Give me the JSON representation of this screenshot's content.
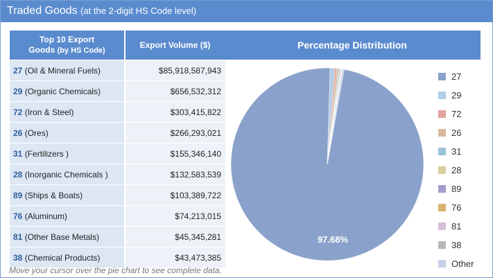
{
  "header": {
    "title": "Traded Goods",
    "subtitle": "(at the 2-digit HS Code level)"
  },
  "table": {
    "col1_line1": "Top 10 Export",
    "col1_line2": "Goods",
    "col1_note": "(by HS Code)",
    "col2": "Export Volume ($)",
    "rows": [
      {
        "code": "27",
        "desc": "(Oil & Mineral Fuels)",
        "value": "$85,918,587,943"
      },
      {
        "code": "29",
        "desc": "(Organic Chemicals)",
        "value": "$656,532,312"
      },
      {
        "code": "72",
        "desc": "(Iron & Steel)",
        "value": "$303,415,822"
      },
      {
        "code": "26",
        "desc": "(Ores)",
        "value": "$266,293,021"
      },
      {
        "code": "31",
        "desc": "(Fertilizers )",
        "value": "$155,346,140"
      },
      {
        "code": "28",
        "desc": "(Inorganic Chemicals )",
        "value": "$132,583,539"
      },
      {
        "code": "89",
        "desc": "(Ships & Boats)",
        "value": "$103,389,722"
      },
      {
        "code": "76",
        "desc": "(Aluminum)",
        "value": "$74,213,015"
      },
      {
        "code": "81",
        "desc": "(Other Base Metals)",
        "value": "$45,345,281"
      },
      {
        "code": "38",
        "desc": "(Chemical Products)",
        "value": "$43,473,385"
      }
    ]
  },
  "chart_data": {
    "type": "pie",
    "title": "Percentage Distribution",
    "largest_slice_label": "97.68%",
    "slices": [
      {
        "name": "27",
        "value": 97.68,
        "color": "#8aa2cb"
      },
      {
        "name": "29",
        "value": 0.75,
        "color": "#b3cde8"
      },
      {
        "name": "72",
        "value": 0.34,
        "color": "#e0a49a"
      },
      {
        "name": "26",
        "value": 0.3,
        "color": "#d8b89a"
      },
      {
        "name": "31",
        "value": 0.18,
        "color": "#9bc2d6"
      },
      {
        "name": "28",
        "value": 0.15,
        "color": "#d9cf9e"
      },
      {
        "name": "89",
        "value": 0.12,
        "color": "#a59ad0"
      },
      {
        "name": "76",
        "value": 0.08,
        "color": "#d6b46c"
      },
      {
        "name": "81",
        "value": 0.05,
        "color": "#d7bfd6"
      },
      {
        "name": "38",
        "value": 0.05,
        "color": "#b7b7b7"
      },
      {
        "name": "Other",
        "value": 0.3,
        "color": "#c5d2e6"
      }
    ]
  },
  "footer": {
    "hint": "Move your cursor over the pie chart to see complete data."
  }
}
